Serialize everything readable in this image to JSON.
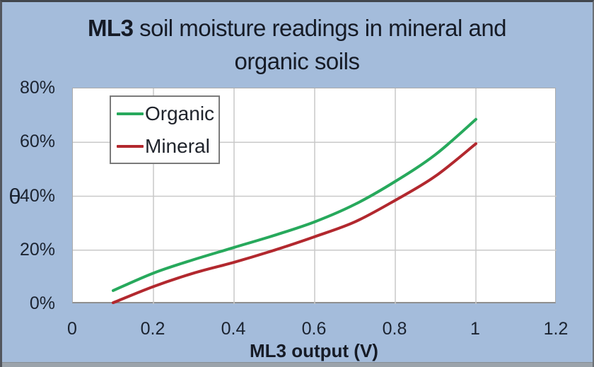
{
  "title": {
    "bold": "ML3",
    "line1_rest": " soil moisture readings in mineral and",
    "line2": "organic soils"
  },
  "colors": {
    "background": "#a4bcdb",
    "plot_background": "#ffffff",
    "gridline": "#c9c9c9",
    "text": "#1b2330",
    "organic_line": "#27a95c",
    "mineral_line": "#b2282e",
    "legend_border": "#7b7b7b"
  },
  "chart_data": {
    "type": "line",
    "title": "ML3 soil moisture readings in mineral and organic soils",
    "xlabel": "ML3 output (V)",
    "ylabel": "θ",
    "xlim": [
      0,
      1.2
    ],
    "ylim": [
      0,
      80
    ],
    "x_ticks": [
      "0",
      "0.2",
      "0.4",
      "0.6",
      "0.8",
      "1",
      "1.2"
    ],
    "x_tick_values": [
      0,
      0.2,
      0.4,
      0.6,
      0.8,
      1.0,
      1.2
    ],
    "y_ticks": [
      "0%",
      "20%",
      "40%",
      "60%",
      "80%"
    ],
    "y_tick_values": [
      0,
      20,
      40,
      60,
      80
    ],
    "y_unit": "percent volumetric soil moisture",
    "grid": true,
    "legend_position": "top-left-inside",
    "x": [
      0.1,
      0.2,
      0.3,
      0.4,
      0.5,
      0.6,
      0.7,
      0.8,
      0.9,
      1.0
    ],
    "series": [
      {
        "name": "Organic",
        "color": "#27a95c",
        "values": [
          5,
          11.5,
          16.5,
          21,
          25.5,
          30.5,
          37,
          45.5,
          55.5,
          68.5
        ]
      },
      {
        "name": "Mineral",
        "color": "#b2282e",
        "values": [
          0.5,
          6.5,
          11.5,
          15.5,
          20,
          25,
          30.5,
          38.5,
          47.5,
          59.5
        ]
      }
    ]
  }
}
